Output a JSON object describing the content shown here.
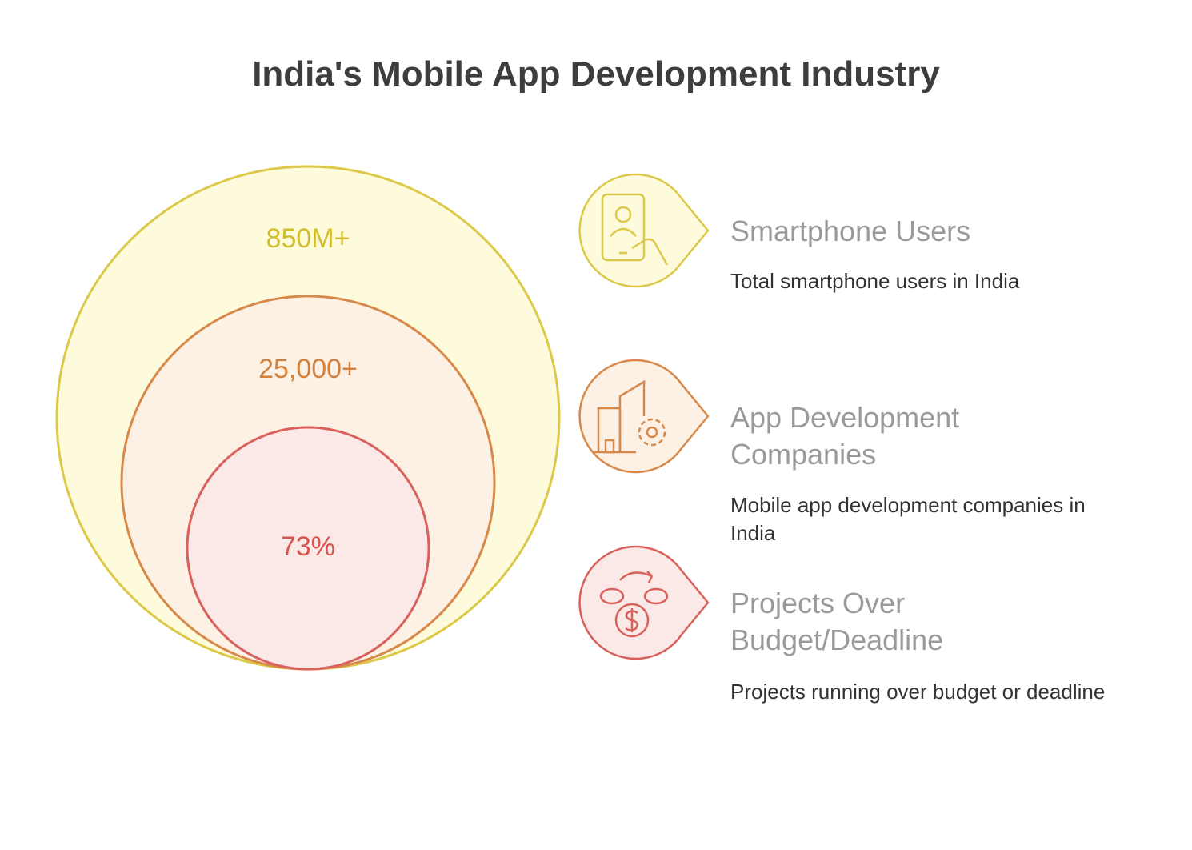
{
  "title": "India's Mobile App Development Industry",
  "circles": [
    {
      "label": "850M+"
    },
    {
      "label": "25,000+"
    },
    {
      "label": "73%"
    }
  ],
  "items": [
    {
      "title": "Smartphone Users",
      "description": "Total smartphone users in India"
    },
    {
      "title": "App Development Companies",
      "description": "Mobile app development companies in India"
    },
    {
      "title": "Projects Over Budget/Deadline",
      "description": "Projects running over budget or deadline"
    }
  ]
}
